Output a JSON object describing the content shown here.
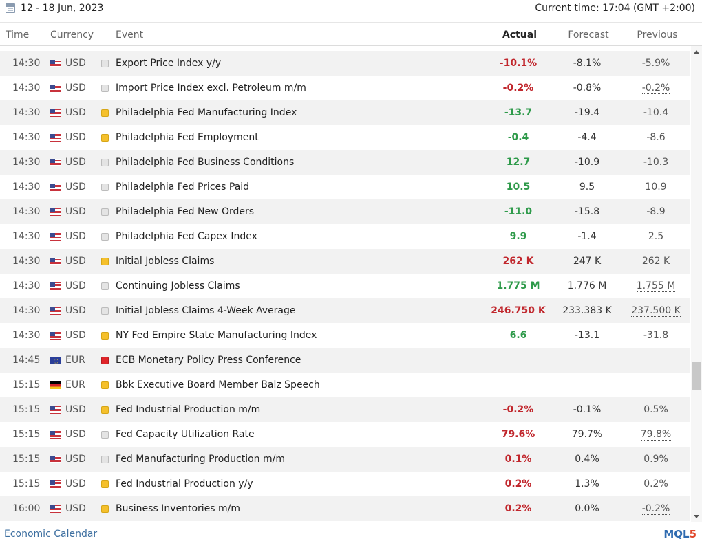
{
  "header": {
    "date_range": "12 - 18 Jun, 2023",
    "current_time_label": "Current time:",
    "current_time_value": "17:04 (GMT +2:00)"
  },
  "columns": {
    "time": "Time",
    "currency": "Currency",
    "event": "Event",
    "actual": "Actual",
    "forecast": "Forecast",
    "previous": "Previous"
  },
  "rows": [
    {
      "time": "14:30",
      "flag": "us",
      "currency": "USD",
      "importance": "low",
      "event": "Export Price Index y/y",
      "actual": "-10.1%",
      "actual_color": "negative",
      "forecast": "-8.1%",
      "previous": "-5.9%",
      "previous_revised": false
    },
    {
      "time": "14:30",
      "flag": "us",
      "currency": "USD",
      "importance": "low",
      "event": "Import Price Index excl. Petroleum m/m",
      "actual": "-0.2%",
      "actual_color": "negative",
      "forecast": "-0.8%",
      "previous": "-0.2%",
      "previous_revised": true
    },
    {
      "time": "14:30",
      "flag": "us",
      "currency": "USD",
      "importance": "medium",
      "event": "Philadelphia Fed Manufacturing Index",
      "actual": "-13.7",
      "actual_color": "positive",
      "forecast": "-19.4",
      "previous": "-10.4",
      "previous_revised": false
    },
    {
      "time": "14:30",
      "flag": "us",
      "currency": "USD",
      "importance": "medium",
      "event": "Philadelphia Fed Employment",
      "actual": "-0.4",
      "actual_color": "positive",
      "forecast": "-4.4",
      "previous": "-8.6",
      "previous_revised": false
    },
    {
      "time": "14:30",
      "flag": "us",
      "currency": "USD",
      "importance": "low",
      "event": "Philadelphia Fed Business Conditions",
      "actual": "12.7",
      "actual_color": "positive",
      "forecast": "-10.9",
      "previous": "-10.3",
      "previous_revised": false
    },
    {
      "time": "14:30",
      "flag": "us",
      "currency": "USD",
      "importance": "low",
      "event": "Philadelphia Fed Prices Paid",
      "actual": "10.5",
      "actual_color": "positive",
      "forecast": "9.5",
      "previous": "10.9",
      "previous_revised": false
    },
    {
      "time": "14:30",
      "flag": "us",
      "currency": "USD",
      "importance": "low",
      "event": "Philadelphia Fed New Orders",
      "actual": "-11.0",
      "actual_color": "positive",
      "forecast": "-15.8",
      "previous": "-8.9",
      "previous_revised": false
    },
    {
      "time": "14:30",
      "flag": "us",
      "currency": "USD",
      "importance": "low",
      "event": "Philadelphia Fed Capex Index",
      "actual": "9.9",
      "actual_color": "positive",
      "forecast": "-1.4",
      "previous": "2.5",
      "previous_revised": false
    },
    {
      "time": "14:30",
      "flag": "us",
      "currency": "USD",
      "importance": "medium",
      "event": "Initial Jobless Claims",
      "actual": "262 K",
      "actual_color": "negative",
      "forecast": "247 K",
      "previous": "262 K",
      "previous_revised": true
    },
    {
      "time": "14:30",
      "flag": "us",
      "currency": "USD",
      "importance": "low",
      "event": "Continuing Jobless Claims",
      "actual": "1.775 M",
      "actual_color": "positive",
      "forecast": "1.776 M",
      "previous": "1.755 M",
      "previous_revised": true
    },
    {
      "time": "14:30",
      "flag": "us",
      "currency": "USD",
      "importance": "low",
      "event": "Initial Jobless Claims 4-Week Average",
      "actual": "246.750 K",
      "actual_color": "negative",
      "forecast": "233.383 K",
      "previous": "237.500 K",
      "previous_revised": true
    },
    {
      "time": "14:30",
      "flag": "us",
      "currency": "USD",
      "importance": "medium",
      "event": "NY Fed Empire State Manufacturing Index",
      "actual": "6.6",
      "actual_color": "positive",
      "forecast": "-13.1",
      "previous": "-31.8",
      "previous_revised": false
    },
    {
      "time": "14:45",
      "flag": "eu",
      "currency": "EUR",
      "importance": "high",
      "event": "ECB Monetary Policy Press Conference",
      "actual": "",
      "actual_color": "neutral",
      "forecast": "",
      "previous": "",
      "previous_revised": false
    },
    {
      "time": "15:15",
      "flag": "de",
      "currency": "EUR",
      "importance": "medium",
      "event": "Bbk Executive Board Member Balz Speech",
      "actual": "",
      "actual_color": "neutral",
      "forecast": "",
      "previous": "",
      "previous_revised": false
    },
    {
      "time": "15:15",
      "flag": "us",
      "currency": "USD",
      "importance": "medium",
      "event": "Fed Industrial Production m/m",
      "actual": "-0.2%",
      "actual_color": "negative",
      "forecast": "-0.1%",
      "previous": "0.5%",
      "previous_revised": false
    },
    {
      "time": "15:15",
      "flag": "us",
      "currency": "USD",
      "importance": "low",
      "event": "Fed Capacity Utilization Rate",
      "actual": "79.6%",
      "actual_color": "negative",
      "forecast": "79.7%",
      "previous": "79.8%",
      "previous_revised": true
    },
    {
      "time": "15:15",
      "flag": "us",
      "currency": "USD",
      "importance": "low",
      "event": "Fed Manufacturing Production m/m",
      "actual": "0.1%",
      "actual_color": "negative",
      "forecast": "0.4%",
      "previous": "0.9%",
      "previous_revised": true
    },
    {
      "time": "15:15",
      "flag": "us",
      "currency": "USD",
      "importance": "medium",
      "event": "Fed Industrial Production y/y",
      "actual": "0.2%",
      "actual_color": "negative",
      "forecast": "1.3%",
      "previous": "0.2%",
      "previous_revised": false
    },
    {
      "time": "16:00",
      "flag": "us",
      "currency": "USD",
      "importance": "medium",
      "event": "Business Inventories m/m",
      "actual": "0.2%",
      "actual_color": "negative",
      "forecast": "0.0%",
      "previous": "-0.2%",
      "previous_revised": true
    }
  ],
  "footer": {
    "link_label": "Economic Calendar",
    "logo_text": "MQL",
    "logo_number": "5"
  },
  "colors": {
    "negative": "#c1272d",
    "positive": "#2e9a4a",
    "importance_high": "#e0252a",
    "importance_medium": "#f5c02c",
    "importance_low": "#e4e4e4",
    "link": "#3d6fa0"
  }
}
